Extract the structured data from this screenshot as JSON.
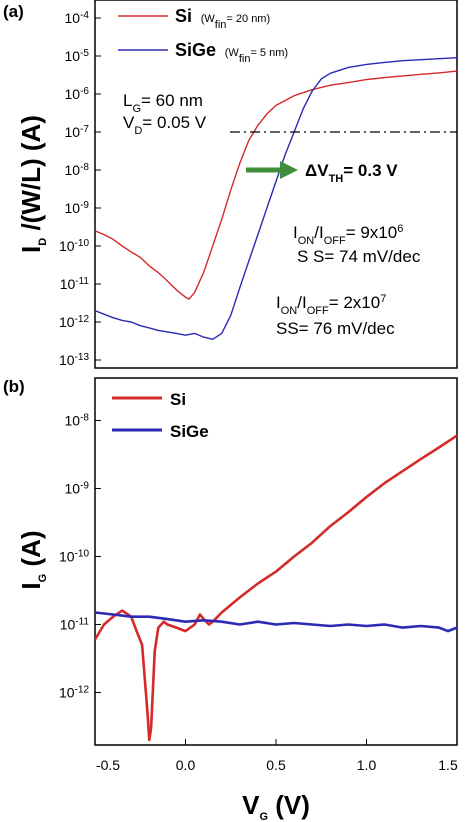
{
  "chart_data": [
    {
      "type": "line",
      "panel_label": "(a)",
      "ylabel": "I_D /(W/L)  (A)",
      "yscale": "log",
      "ylim": [
        1e-13,
        0.0001
      ],
      "xlim": [
        -0.5,
        1.5
      ],
      "x_ticks_labeled": false,
      "y_tick_labels": [
        "10-4",
        "10-5",
        "10-6",
        "10-7",
        "10-8",
        "10-9",
        "10-10",
        "10-11",
        "10-12",
        "10-13"
      ],
      "legend_position": "top",
      "legend": [
        {
          "name": "Si",
          "note": "(W_fin= 20 nm)",
          "color": "#d42a2a"
        },
        {
          "name": "SiGe",
          "note": "(W_fin= 5 nm)",
          "color": "#2a2ab4"
        }
      ],
      "conditions": [
        "L_G= 60 nm",
        "V_D= 0.05 V"
      ],
      "reference_line": {
        "y": 1e-07,
        "style": "dash-dot"
      },
      "arrow_label": "ΔV_TH= 0.3 V",
      "arrow_color": "#3f8f3a",
      "annotations": [
        {
          "lines": [
            "I_ON/I_OFF=  9x10^6",
            "S S= 74 mV/dec"
          ],
          "color": "#d42a2a"
        },
        {
          "lines": [
            "I_ON/I_OFF=  2x10^7",
            "SS= 76 mV/dec"
          ],
          "color": "#2a2ab4"
        }
      ],
      "series": [
        {
          "name": "Si",
          "color": "#d42a2a",
          "x": [
            -0.5,
            -0.45,
            -0.4,
            -0.35,
            -0.3,
            -0.25,
            -0.2,
            -0.15,
            -0.1,
            -0.05,
            0.0,
            0.02,
            0.05,
            0.1,
            0.15,
            0.2,
            0.25,
            0.3,
            0.35,
            0.4,
            0.45,
            0.5,
            0.6,
            0.7,
            0.8,
            0.9,
            1.0,
            1.1,
            1.2,
            1.3,
            1.4,
            1.5
          ],
          "y": [
            2.5e-10,
            2e-10,
            1.5e-10,
            1e-10,
            7e-11,
            5e-11,
            3e-11,
            2e-11,
            1.2e-11,
            7e-12,
            4.5e-12,
            4e-12,
            6e-12,
            2e-11,
            1e-10,
            5e-10,
            3e-09,
            1.5e-08,
            6e-08,
            1.5e-07,
            3e-07,
            5e-07,
            9e-07,
            1.3e-06,
            1.7e-06,
            2e-06,
            2.4e-06,
            2.7e-06,
            3e-06,
            3.3e-06,
            3.6e-06,
            4e-06
          ]
        },
        {
          "name": "SiGe",
          "color": "#2a2ab4",
          "x": [
            -0.5,
            -0.45,
            -0.4,
            -0.35,
            -0.3,
            -0.25,
            -0.2,
            -0.15,
            -0.1,
            -0.05,
            0.0,
            0.05,
            0.1,
            0.15,
            0.2,
            0.25,
            0.3,
            0.35,
            0.4,
            0.45,
            0.5,
            0.55,
            0.6,
            0.65,
            0.7,
            0.75,
            0.8,
            0.9,
            1.0,
            1.1,
            1.2,
            1.3,
            1.4,
            1.5
          ],
          "y": [
            2e-12,
            1.6e-12,
            1.3e-12,
            1.1e-12,
            1e-12,
            8e-13,
            7e-13,
            6e-13,
            5.5e-13,
            5e-13,
            4.5e-13,
            5e-13,
            4e-13,
            3.5e-13,
            5e-13,
            1.5e-12,
            8e-12,
            4e-11,
            2e-10,
            1e-09,
            5e-09,
            2.5e-08,
            1e-07,
            4e-07,
            1.2e-06,
            2.5e-06,
            3.5e-06,
            5e-06,
            6e-06,
            6.8e-06,
            7.5e-06,
            8e-06,
            8.5e-06,
            9e-06
          ]
        }
      ]
    },
    {
      "type": "line",
      "panel_label": "(b)",
      "xlabel": "V_G (V)",
      "ylabel": "I_G (A)",
      "yscale": "log",
      "ylim": [
        2e-13,
        2e-08
      ],
      "xlim": [
        -0.5,
        1.5
      ],
      "x_tick_labels": [
        "-0.5",
        "0.0",
        "0.5",
        "1.0",
        "1.5"
      ],
      "y_tick_labels": [
        "10-8",
        "10-9",
        "10-10",
        "10-11",
        "10-12"
      ],
      "legend_position": "top-left",
      "series": [
        {
          "name": "Si",
          "color": "#d42a2a",
          "x": [
            -0.5,
            -0.45,
            -0.4,
            -0.35,
            -0.3,
            -0.27,
            -0.24,
            -0.21,
            -0.2,
            -0.19,
            -0.17,
            -0.15,
            -0.12,
            -0.1,
            -0.05,
            0.0,
            0.05,
            0.08,
            0.1,
            0.13,
            0.15,
            0.2,
            0.3,
            0.4,
            0.5,
            0.6,
            0.7,
            0.8,
            0.9,
            1.0,
            1.1,
            1.2,
            1.3,
            1.4,
            1.5
          ],
          "y": [
            6e-12,
            1e-11,
            1.3e-11,
            1.6e-11,
            1.3e-11,
            8e-12,
            5e-12,
            5e-13,
            2e-13,
            3e-13,
            4e-12,
            9e-12,
            1.1e-11,
            1e-11,
            9e-12,
            8e-12,
            1e-11,
            1.4e-11,
            1.2e-11,
            1e-11,
            1.1e-11,
            1.5e-11,
            2.5e-11,
            4e-11,
            6e-11,
            1e-10,
            1.6e-10,
            2.8e-10,
            4.5e-10,
            7.5e-10,
            1.2e-09,
            1.8e-09,
            2.7e-09,
            4e-09,
            6e-09
          ]
        },
        {
          "name": "SiGe",
          "color": "#2a2ab4",
          "x": [
            -0.5,
            -0.4,
            -0.3,
            -0.2,
            -0.1,
            0.0,
            0.1,
            0.2,
            0.3,
            0.4,
            0.5,
            0.6,
            0.7,
            0.8,
            0.9,
            1.0,
            1.1,
            1.2,
            1.3,
            1.4,
            1.45,
            1.5
          ],
          "y": [
            1.5e-11,
            1.4e-11,
            1.3e-11,
            1.3e-11,
            1.2e-11,
            1.1e-11,
            1.15e-11,
            1.1e-11,
            1e-11,
            1.1e-11,
            1e-11,
            1.05e-11,
            1e-11,
            9.5e-12,
            1e-11,
            9.5e-12,
            1e-11,
            9e-12,
            9.5e-12,
            9e-12,
            8e-12,
            9e-12
          ]
        }
      ]
    }
  ]
}
